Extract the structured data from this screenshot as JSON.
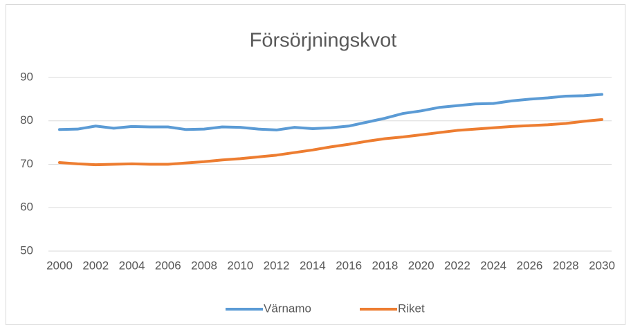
{
  "chart_data": {
    "type": "line",
    "title": "Försörjningskvot",
    "x": [
      2000,
      2001,
      2002,
      2003,
      2004,
      2005,
      2006,
      2007,
      2008,
      2009,
      2010,
      2011,
      2012,
      2013,
      2014,
      2015,
      2016,
      2017,
      2018,
      2019,
      2020,
      2021,
      2022,
      2023,
      2024,
      2025,
      2026,
      2027,
      2028,
      2029,
      2030
    ],
    "xlim": [
      2000,
      2030
    ],
    "xticks": [
      2000,
      2002,
      2004,
      2006,
      2008,
      2010,
      2012,
      2014,
      2016,
      2018,
      2020,
      2022,
      2024,
      2026,
      2028,
      2030
    ],
    "ylim": [
      50,
      90
    ],
    "yticks": [
      50,
      60,
      70,
      80,
      90
    ],
    "grid": true,
    "legend": "bottom",
    "series": [
      {
        "name": "Värnamo",
        "color": "#5b9bd5",
        "values": [
          78.0,
          78.1,
          78.8,
          78.3,
          78.7,
          78.6,
          78.6,
          78.0,
          78.1,
          78.6,
          78.5,
          78.1,
          77.9,
          78.5,
          78.2,
          78.4,
          78.8,
          79.7,
          80.6,
          81.7,
          82.3,
          83.1,
          83.5,
          83.9,
          84.0,
          84.6,
          85.0,
          85.3,
          85.7,
          85.8,
          86.1
        ]
      },
      {
        "name": "Riket",
        "color": "#ed7d31",
        "values": [
          70.4,
          70.1,
          69.9,
          70.0,
          70.1,
          70.0,
          70.0,
          70.3,
          70.6,
          71.0,
          71.3,
          71.7,
          72.1,
          72.7,
          73.3,
          74.0,
          74.6,
          75.3,
          75.9,
          76.3,
          76.8,
          77.3,
          77.8,
          78.1,
          78.4,
          78.7,
          78.9,
          79.1,
          79.4,
          79.9,
          80.3
        ]
      }
    ]
  }
}
